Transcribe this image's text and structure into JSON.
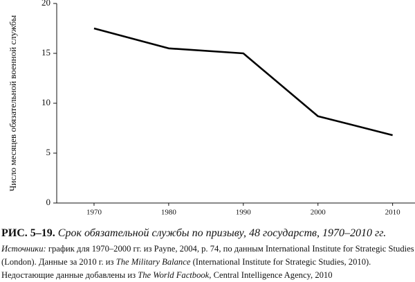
{
  "chart_data": {
    "type": "line",
    "y_label": "Число месяцев обязательной военной службы",
    "x": [
      1970,
      1980,
      1990,
      2000,
      2010
    ],
    "values": [
      17.5,
      15.5,
      15.0,
      8.7,
      6.8
    ],
    "color": "#000000",
    "xlim": [
      1965,
      2013
    ],
    "xticks": [
      1970,
      1980,
      1990,
      2000,
      2010
    ],
    "ylim": [
      0,
      20
    ],
    "yticks": [
      0,
      5,
      10,
      15,
      20
    ],
    "grid": false,
    "figure_label": "РИС. 5–19.",
    "caption": "Срок обязательной службы по призыву, 48 государств, 1970–2010 гг.",
    "source": [
      "Источники:",
      " график для 1970–2000 гг. из Payne, 2004, p. 74, по данным International Institute for Strategic Studies (London). Данные за 2010 г. из ",
      "The Military Balance",
      " (International Institute for Strategic Studies, 2010). Недостающие данные добавлены из ",
      "The World Factbook",
      ", Central Intelligence Agency, 2010"
    ]
  }
}
